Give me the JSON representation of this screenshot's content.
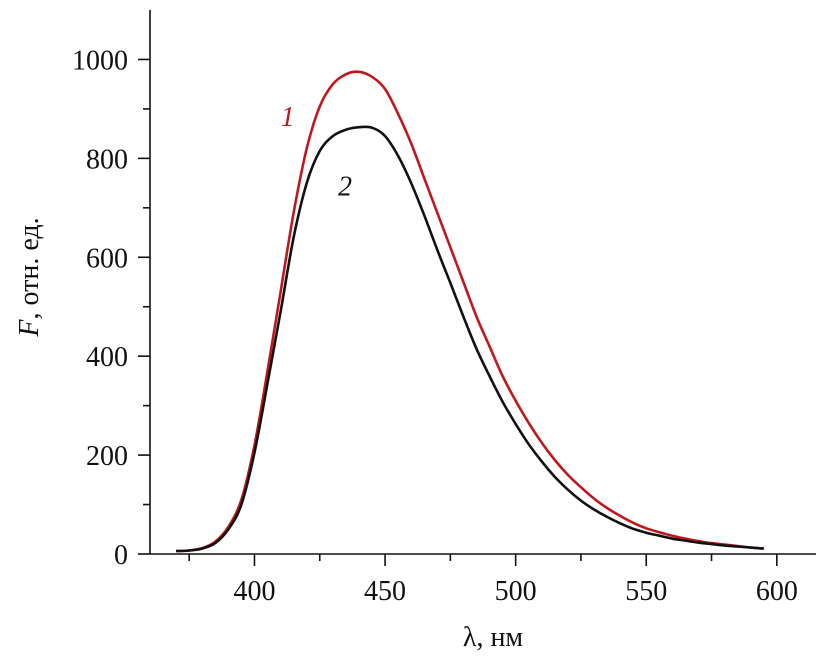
{
  "chart_data": {
    "type": "line",
    "xlabel_symbol": "λ",
    "xlabel_unit": ", нм",
    "ylabel_symbol": "F",
    "ylabel_unit": ", отн. ед.",
    "xlim": [
      360,
      615
    ],
    "ylim": [
      0,
      1100
    ],
    "x_ticks": [
      400,
      450,
      500,
      550,
      600
    ],
    "x_minor_ticks": [
      375,
      425,
      475,
      525,
      575
    ],
    "y_ticks": [
      0,
      200,
      400,
      600,
      800,
      1000
    ],
    "y_minor_ticks": [
      100,
      300,
      500,
      700,
      900
    ],
    "grid": false,
    "legend": "none",
    "series": [
      {
        "name": "1",
        "color": "#c0171d",
        "label_position": [
          410,
          865
        ],
        "x": [
          370,
          375,
          380,
          385,
          390,
          395,
          400,
          405,
          410,
          415,
          420,
          425,
          430,
          435,
          440,
          445,
          450,
          455,
          460,
          465,
          470,
          475,
          480,
          485,
          490,
          495,
          500,
          505,
          510,
          515,
          520,
          525,
          530,
          535,
          540,
          545,
          550,
          555,
          560,
          565,
          570,
          575,
          580,
          585,
          590,
          595
        ],
        "y": [
          6,
          7,
          12,
          25,
          55,
          110,
          220,
          370,
          530,
          690,
          820,
          905,
          950,
          970,
          975,
          965,
          940,
          890,
          830,
          760,
          690,
          620,
          550,
          480,
          420,
          360,
          310,
          265,
          225,
          190,
          160,
          135,
          112,
          93,
          77,
          63,
          52,
          44,
          37,
          31,
          26,
          22,
          19,
          16,
          13,
          11
        ]
      },
      {
        "name": "2",
        "color": "#111111",
        "label_position": [
          432,
          725
        ],
        "x": [
          370,
          375,
          380,
          385,
          390,
          395,
          400,
          405,
          410,
          415,
          420,
          425,
          430,
          435,
          440,
          445,
          450,
          455,
          460,
          465,
          470,
          475,
          480,
          485,
          490,
          495,
          500,
          505,
          510,
          515,
          520,
          525,
          530,
          535,
          540,
          545,
          550,
          555,
          560,
          565,
          570,
          575,
          580,
          585,
          590,
          595
        ],
        "y": [
          6,
          7,
          11,
          22,
          50,
          100,
          205,
          345,
          490,
          640,
          750,
          815,
          845,
          858,
          863,
          862,
          845,
          805,
          750,
          685,
          615,
          548,
          480,
          415,
          360,
          308,
          263,
          222,
          187,
          156,
          130,
          108,
          90,
          75,
          62,
          51,
          43,
          37,
          31,
          27,
          23,
          20,
          17,
          15,
          13,
          11
        ]
      }
    ]
  }
}
